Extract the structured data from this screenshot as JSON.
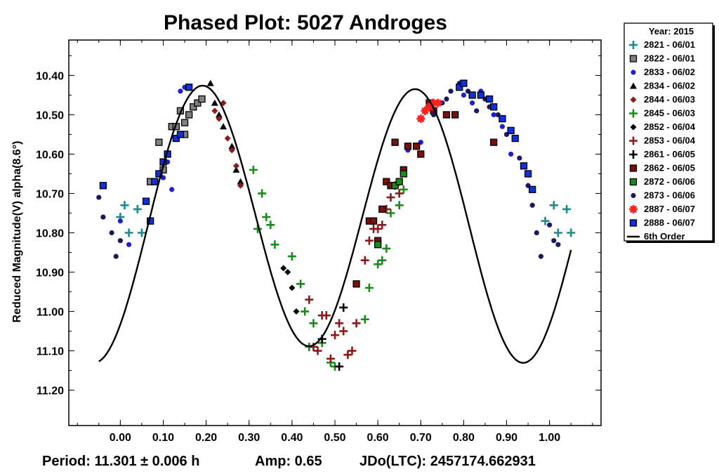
{
  "chart_data": {
    "type": "scatter",
    "title": "Phased Plot: 5027 Androges",
    "xlabel": "",
    "ylabel": "Reduced Magnitude(V) alpha(8.6°)",
    "xlim": [
      -0.12,
      1.12
    ],
    "ylim": [
      11.29,
      10.31
    ],
    "y_inverted": true,
    "x_ticks": [
      "0.00",
      "0.10",
      "0.20",
      "0.30",
      "0.40",
      "0.50",
      "0.60",
      "0.70",
      "0.80",
      "0.90",
      "1.00"
    ],
    "x_tick_values": [
      0,
      0.1,
      0.2,
      0.3,
      0.4,
      0.5,
      0.6,
      0.7,
      0.8,
      0.9,
      1.0
    ],
    "y_ticks": [
      "10.40",
      "10.50",
      "10.60",
      "10.70",
      "10.80",
      "10.90",
      "11.00",
      "11.10",
      "11.20"
    ],
    "y_tick_values": [
      10.4,
      10.5,
      10.6,
      10.7,
      10.8,
      10.9,
      11.0,
      11.1,
      11.2
    ],
    "grid": false,
    "legend_position": "right",
    "legend_title": "Year: 2015",
    "footer": {
      "period": "Period: 11.301 ± 0.006 h",
      "amp": "Amp: 0.65",
      "jdo": "JDo(LTC): 2457174.662931"
    },
    "series": [
      {
        "name": "2821 - 06/01",
        "marker": "plus",
        "color": "#1a8a8a",
        "points": [
          [
            0.0,
            10.76
          ],
          [
            0.01,
            10.73
          ],
          [
            0.02,
            10.8
          ],
          [
            0.04,
            10.74
          ],
          [
            0.05,
            10.8
          ],
          [
            0.99,
            10.77
          ],
          [
            1.01,
            10.73
          ],
          [
            1.02,
            10.8
          ],
          [
            1.04,
            10.74
          ],
          [
            1.05,
            10.8
          ]
        ]
      },
      {
        "name": "2822 - 06/01",
        "marker": "square",
        "color": "#808080",
        "points": [
          [
            0.07,
            10.67
          ],
          [
            0.09,
            10.57
          ],
          [
            0.1,
            10.64
          ],
          [
            0.12,
            10.53
          ],
          [
            0.13,
            10.53
          ],
          [
            0.14,
            10.49
          ],
          [
            0.15,
            10.52
          ],
          [
            0.15,
            10.55
          ],
          [
            0.16,
            10.5
          ],
          [
            0.17,
            10.48
          ],
          [
            0.18,
            10.47
          ],
          [
            0.19,
            10.46
          ]
        ]
      },
      {
        "name": "2833 - 06/02",
        "marker": "circle",
        "color": "#2020d0",
        "points": [
          [
            0.0,
            10.77
          ],
          [
            0.02,
            10.83
          ],
          [
            0.1,
            10.66
          ],
          [
            0.11,
            10.62
          ],
          [
            0.12,
            10.69
          ],
          [
            0.14,
            10.44
          ],
          [
            0.15,
            10.43
          ],
          [
            0.67,
            10.59
          ],
          [
            0.7,
            10.57
          ],
          [
            0.8,
            10.45
          ],
          [
            0.82,
            10.47
          ],
          [
            0.84,
            10.44
          ],
          [
            0.87,
            10.5
          ],
          [
            0.89,
            10.53
          ],
          [
            0.91,
            10.6
          ]
        ]
      },
      {
        "name": "2834 - 06/02",
        "marker": "triangle",
        "color": "#000000",
        "points": [
          [
            0.21,
            10.42
          ],
          [
            0.22,
            10.47
          ],
          [
            0.23,
            10.5
          ],
          [
            0.24,
            10.53
          ],
          [
            0.26,
            10.58
          ],
          [
            0.27,
            10.64
          ],
          [
            0.28,
            10.67
          ]
        ]
      },
      {
        "name": "2844 - 06/03",
        "marker": "diamond",
        "color": "#8b1a1a",
        "points": [
          [
            0.22,
            10.49
          ],
          [
            0.23,
            10.51
          ],
          [
            0.24,
            10.47
          ],
          [
            0.25,
            10.56
          ],
          [
            0.26,
            10.59
          ],
          [
            0.27,
            10.63
          ],
          [
            0.28,
            10.68
          ]
        ]
      },
      {
        "name": "2845 - 06/03",
        "marker": "plus",
        "color": "#1a8a1a",
        "points": [
          [
            0.31,
            10.64
          ],
          [
            0.32,
            10.79
          ],
          [
            0.33,
            10.7
          ],
          [
            0.34,
            10.76
          ],
          [
            0.35,
            10.78
          ],
          [
            0.36,
            10.83
          ],
          [
            0.4,
            10.86
          ],
          [
            0.42,
            10.93
          ],
          [
            0.43,
            11.0
          ],
          [
            0.44,
            11.09
          ],
          [
            0.45,
            11.03
          ],
          [
            0.47,
            11.08
          ],
          [
            0.49,
            11.13
          ],
          [
            0.5,
            11.14
          ],
          [
            0.57,
            11.02
          ],
          [
            0.58,
            10.94
          ],
          [
            0.6,
            10.88
          ],
          [
            0.61,
            10.87
          ],
          [
            0.62,
            10.84
          ],
          [
            0.63,
            10.75
          ],
          [
            0.65,
            10.73
          ],
          [
            0.66,
            10.69
          ]
        ]
      },
      {
        "name": "2852 - 06/04",
        "marker": "diamond",
        "color": "#000000",
        "points": [
          [
            0.38,
            10.89
          ],
          [
            0.39,
            10.9
          ],
          [
            0.4,
            10.94
          ],
          [
            0.41,
            11.0
          ]
        ]
      },
      {
        "name": "2853 - 06/04",
        "marker": "plus",
        "color": "#8b1a1a",
        "points": [
          [
            0.44,
            10.97
          ],
          [
            0.45,
            11.09
          ],
          [
            0.46,
            11.1
          ],
          [
            0.47,
            11.01
          ],
          [
            0.48,
            11.01
          ],
          [
            0.49,
            11.12
          ],
          [
            0.5,
            11.06
          ],
          [
            0.51,
            11.03
          ],
          [
            0.52,
            11.05
          ],
          [
            0.53,
            11.11
          ],
          [
            0.54,
            11.1
          ],
          [
            0.55,
            11.03
          ],
          [
            0.57,
            10.87
          ],
          [
            0.58,
            10.82
          ],
          [
            0.59,
            10.79
          ],
          [
            0.6,
            10.79
          ],
          [
            0.61,
            10.78
          ],
          [
            0.62,
            10.74
          ],
          [
            0.63,
            10.71
          ],
          [
            0.64,
            10.68
          ],
          [
            0.65,
            10.7
          ]
        ]
      },
      {
        "name": "2861 - 06/05",
        "marker": "plus",
        "color": "#000000",
        "points": [
          [
            0.47,
            11.07
          ],
          [
            0.51,
            11.14
          ],
          [
            0.52,
            10.99
          ]
        ]
      },
      {
        "name": "2862 - 06/05",
        "marker": "square",
        "color": "#7a0f0f",
        "points": [
          [
            0.55,
            10.93
          ],
          [
            0.58,
            10.77
          ],
          [
            0.59,
            10.77
          ],
          [
            0.6,
            10.82
          ],
          [
            0.61,
            10.74
          ],
          [
            0.62,
            10.67
          ],
          [
            0.63,
            10.68
          ],
          [
            0.64,
            10.57
          ],
          [
            0.66,
            10.64
          ],
          [
            0.67,
            10.58
          ],
          [
            0.69,
            10.58
          ],
          [
            0.7,
            10.6
          ],
          [
            0.72,
            10.47
          ],
          [
            0.73,
            10.49
          ],
          [
            0.76,
            10.5
          ],
          [
            0.78,
            10.5
          ],
          [
            0.87,
            10.57
          ]
        ]
      },
      {
        "name": "2872 - 06/06",
        "marker": "square",
        "color": "#1a8a1a",
        "points": [
          [
            0.6,
            10.83
          ],
          [
            0.64,
            10.68
          ],
          [
            0.65,
            10.67
          ],
          [
            0.66,
            10.65
          ]
        ]
      },
      {
        "name": "2873 - 06/06",
        "marker": "circle",
        "color": "#1a1a60",
        "points": [
          [
            -0.05,
            10.71
          ],
          [
            -0.04,
            10.76
          ],
          [
            -0.02,
            10.8
          ],
          [
            -0.01,
            10.86
          ],
          [
            0.0,
            10.82
          ],
          [
            0.73,
            10.5
          ],
          [
            0.75,
            10.47
          ],
          [
            0.76,
            10.46
          ],
          [
            0.77,
            10.44
          ],
          [
            0.79,
            10.42
          ],
          [
            0.81,
            10.44
          ],
          [
            0.83,
            10.49
          ],
          [
            0.85,
            10.46
          ],
          [
            0.86,
            10.48
          ],
          [
            0.88,
            10.5
          ],
          [
            0.9,
            10.55
          ],
          [
            0.92,
            10.56
          ],
          [
            0.93,
            10.61
          ],
          [
            0.94,
            10.63
          ],
          [
            0.95,
            10.68
          ],
          [
            0.96,
            10.73
          ],
          [
            0.97,
            10.8
          ],
          [
            0.98,
            10.86
          ],
          [
            1.0,
            10.78
          ],
          [
            1.01,
            10.82
          ],
          [
            1.02,
            10.83
          ]
        ]
      },
      {
        "name": "2887 - 06/07",
        "marker": "asterisk",
        "color": "#ff2020",
        "points": [
          [
            0.7,
            10.51
          ],
          [
            0.71,
            10.49
          ],
          [
            0.72,
            10.48
          ],
          [
            0.73,
            10.47
          ],
          [
            0.74,
            10.47
          ]
        ]
      },
      {
        "name": "2888 - 06/07",
        "marker": "square",
        "color": "#1030e0",
        "points": [
          [
            -0.04,
            10.68
          ],
          [
            0.06,
            10.72
          ],
          [
            0.07,
            10.77
          ],
          [
            0.08,
            10.67
          ],
          [
            0.09,
            10.65
          ],
          [
            0.1,
            10.62
          ],
          [
            0.11,
            10.6
          ],
          [
            0.13,
            10.56
          ],
          [
            0.14,
            10.55
          ],
          [
            0.16,
            10.43
          ],
          [
            0.79,
            10.43
          ],
          [
            0.8,
            10.42
          ],
          [
            0.82,
            10.45
          ],
          [
            0.84,
            10.45
          ],
          [
            0.86,
            10.46
          ],
          [
            0.87,
            10.48
          ],
          [
            0.89,
            10.51
          ],
          [
            0.91,
            10.54
          ],
          [
            0.92,
            10.56
          ],
          [
            0.94,
            10.63
          ],
          [
            0.95,
            10.65
          ],
          [
            0.96,
            10.69
          ]
        ]
      }
    ],
    "fit": {
      "name": "6th Order",
      "mean": 10.77,
      "a1": 0.018,
      "b1": -0.012,
      "a2": 0.245,
      "b2": -0.235,
      "a3": 0.0,
      "b3": 0.0
    }
  }
}
